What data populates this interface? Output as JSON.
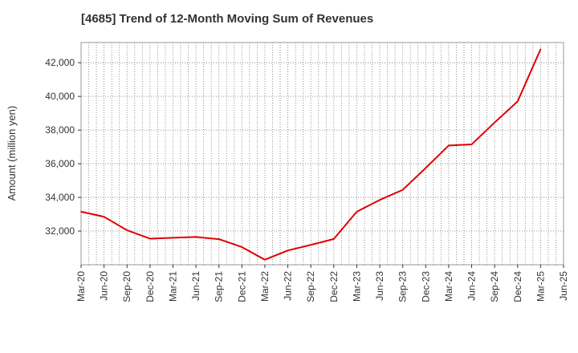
{
  "chart_data": {
    "type": "line",
    "title": "[4685]  Trend of 12-Month Moving Sum of Revenues",
    "xlabel": "",
    "ylabel": "Amount (million yen)",
    "x_tick_labels": [
      "Mar-20",
      "Jun-20",
      "Sep-20",
      "Dec-20",
      "Mar-21",
      "Jun-21",
      "Sep-21",
      "Dec-21",
      "Mar-22",
      "Jun-22",
      "Sep-22",
      "Dec-22",
      "Mar-23",
      "Jun-23",
      "Sep-23",
      "Dec-23",
      "Mar-24",
      "Jun-24",
      "Sep-24",
      "Dec-24",
      "Mar-25",
      "Jun-25"
    ],
    "y_ticks": [
      32000,
      34000,
      36000,
      38000,
      40000,
      42000
    ],
    "y_tick_labels": [
      "32,000",
      "34,000",
      "36,000",
      "38,000",
      "40,000",
      "42,000"
    ],
    "ylim": [
      30000,
      43200
    ],
    "grid": true,
    "line_color": "#e00000",
    "series": [
      {
        "x": [
          "Mar-20",
          "Jun-20",
          "Sep-20",
          "Dec-20",
          "Mar-21",
          "Jun-21",
          "Sep-21",
          "Dec-21",
          "Mar-22",
          "Jun-22",
          "Sep-22",
          "Dec-22",
          "Mar-23",
          "Jun-23",
          "Sep-23",
          "Dec-23",
          "Mar-24",
          "Jun-24",
          "Sep-24",
          "Dec-24",
          "Mar-25"
        ],
        "values": [
          33150,
          32850,
          32050,
          31550,
          31600,
          31650,
          31520,
          31050,
          30300,
          30850,
          31180,
          31530,
          33150,
          33850,
          34450,
          35750,
          37080,
          37150,
          38450,
          39700,
          42800
        ]
      }
    ]
  }
}
